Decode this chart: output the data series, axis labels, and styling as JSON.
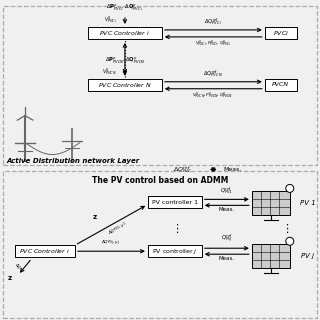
{
  "bg_color": "#f0f0f0",
  "title_upper": "Active Distribution network Layer",
  "title_lower": "The PV control based on ADMM",
  "pvc_controller_i_label": "PVC Controller $i$",
  "pvc_controller_N_label": "PVC Controller $N$",
  "pv_controller_1_label": "PV controller 1",
  "pv_controller_j_label": "PV controller $j$",
  "pvc_controller_i2_label": "PVC Controller $i$",
  "fig_width": 3.2,
  "fig_height": 3.2,
  "dpi": 100
}
